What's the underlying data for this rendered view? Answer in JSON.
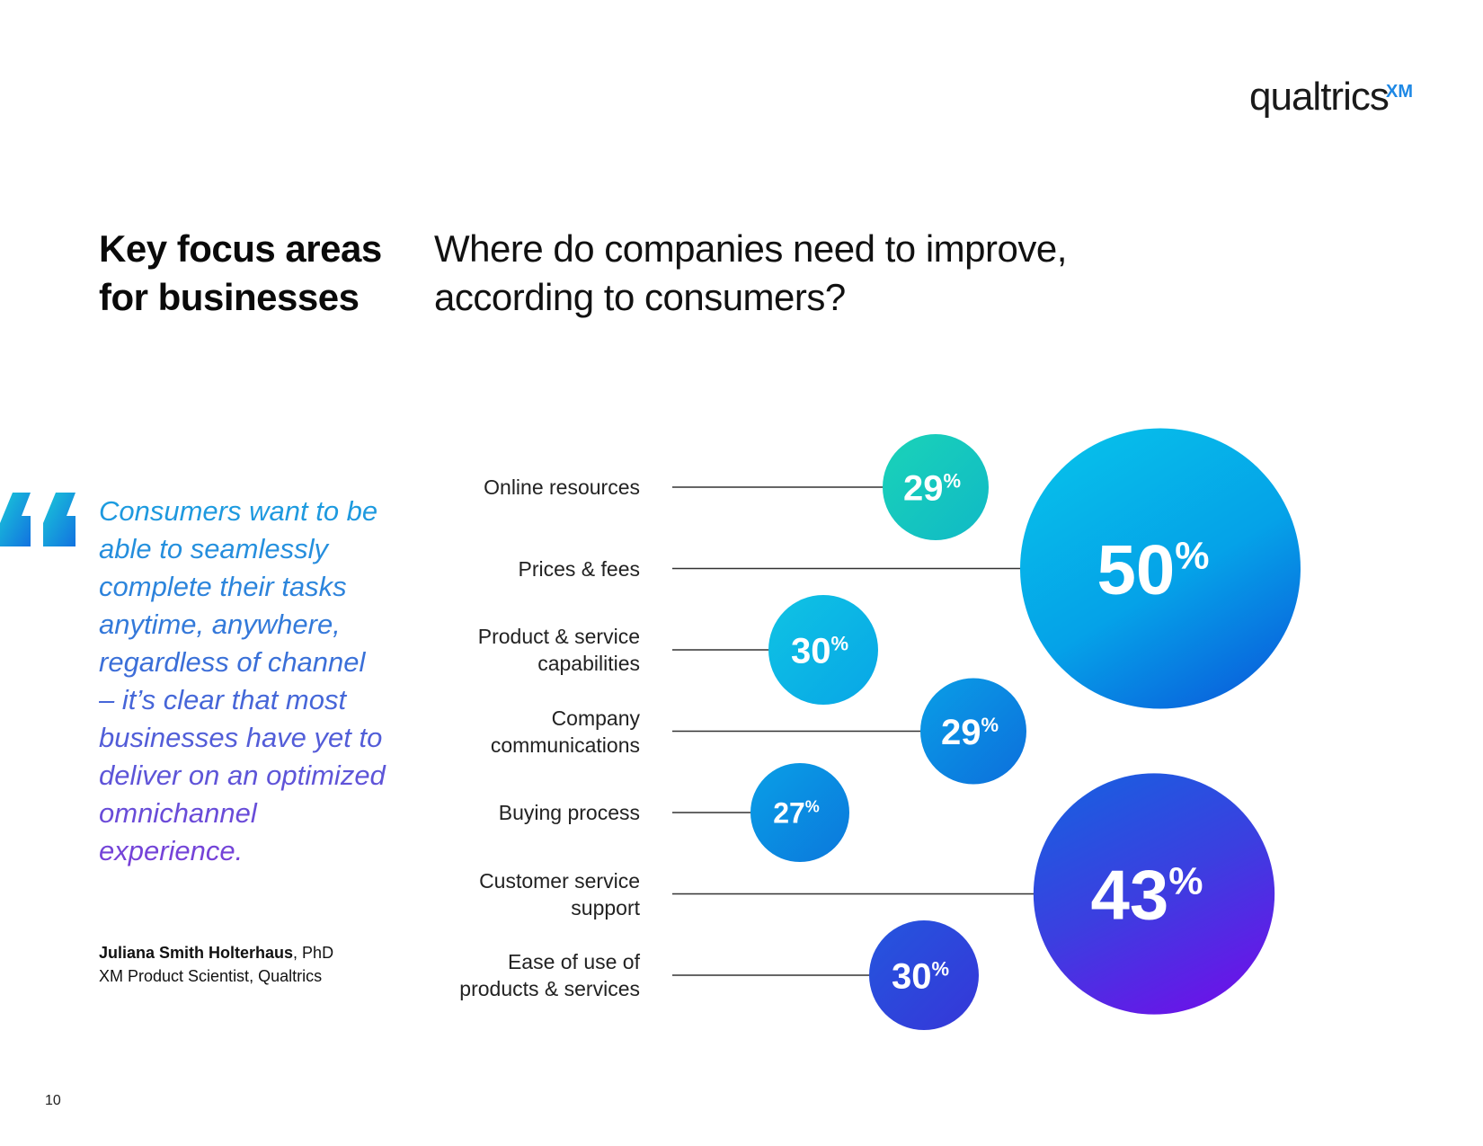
{
  "brand": {
    "name": "qualtrics",
    "suffix": "XM"
  },
  "page_number": "10",
  "section_title": "Key focus areas for businesses",
  "quote": {
    "text": "Consumers want to be able to seamlessly complete their tasks anytime, anywhere, regardless of channel – it’s clear that most businesses have yet to deliver on an optimized omnichannel experience.",
    "author_name": "Juliana Smith Holterhaus",
    "author_credential": ", PhD",
    "author_role": "XM Product Scientist, Qualtrics"
  },
  "colors": {
    "teal": "#19c9b3",
    "sky": "#04b3ea",
    "blue": "#0b7fe0",
    "indigo": "#3a47d8",
    "violet": "#6d1fe6"
  },
  "chart_data": {
    "type": "bubble",
    "title": "Where do companies need to improve, according to consumers?",
    "unit": "%",
    "categories": [
      "Online resources",
      "Prices & fees",
      "Product & service capabilities",
      "Company communications",
      "Buying process",
      "Customer service support",
      "Ease of use of products & services"
    ],
    "values": [
      29,
      50,
      30,
      29,
      27,
      43,
      30
    ]
  }
}
